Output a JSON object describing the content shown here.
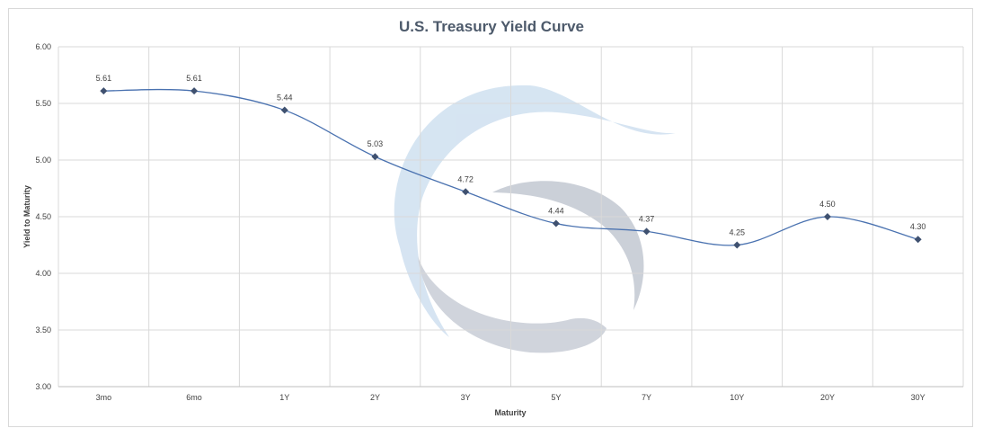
{
  "chart_data": {
    "type": "line",
    "title": "U.S. Treasury Yield Curve",
    "xlabel": "Maturity",
    "ylabel": "Yield to Maturity",
    "categories": [
      "3mo",
      "6mo",
      "1Y",
      "2Y",
      "3Y",
      "5Y",
      "7Y",
      "10Y",
      "20Y",
      "30Y"
    ],
    "series": [
      {
        "values": [
          5.61,
          5.61,
          5.44,
          5.03,
          4.72,
          4.44,
          4.37,
          4.25,
          4.5,
          4.3
        ],
        "data_labels": [
          "5.61",
          "5.61",
          "5.44",
          "5.03",
          "4.72",
          "4.44",
          "4.37",
          "4.25",
          "4.50",
          "4.30"
        ]
      }
    ],
    "yticks": [
      "3.00",
      "3.50",
      "4.00",
      "4.50",
      "5.00",
      "5.50",
      "6.00"
    ],
    "ylim": [
      3.0,
      6.0
    ],
    "grid": true,
    "smooth": true,
    "legend": "none",
    "colors": {
      "line": "#4a72b0",
      "marker": "#3f5170",
      "grid": "#d9d9d9",
      "watermark_blue": "#c9dcee",
      "watermark_gray": "#c3c8d2"
    }
  }
}
